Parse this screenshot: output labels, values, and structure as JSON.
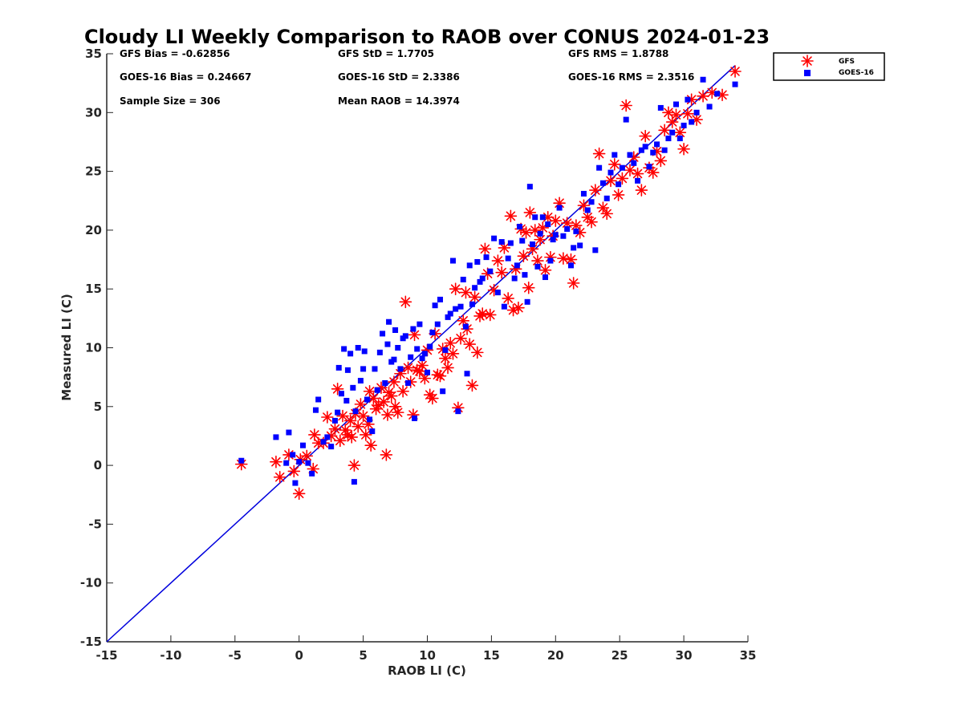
{
  "chart_data": {
    "type": "scatter",
    "title": "Cloudy LI Weekly Comparison to RAOB over CONUS 2024-01-23",
    "xlabel": "RAOB LI (C)",
    "ylabel": "Measured LI (C)",
    "xlim": [
      -15,
      35
    ],
    "ylim": [
      -15,
      35
    ],
    "xticks": [
      -15,
      -10,
      -5,
      0,
      5,
      10,
      15,
      20,
      25,
      30,
      35
    ],
    "yticks": [
      -15,
      -10,
      -5,
      0,
      5,
      10,
      15,
      20,
      25,
      30,
      35
    ],
    "grid": false,
    "legend_position": "outside-top-right",
    "reference_line": {
      "from": [
        -15,
        -15
      ],
      "to": [
        34,
        34
      ],
      "color": "#0000dd"
    },
    "stats": [
      [
        "GFS Bias = -0.62856",
        "GFS StD = 1.7705",
        "GFS RMS = 1.8788"
      ],
      [
        "GOES-16 Bias = 0.24667",
        "GOES-16 StD = 2.3386",
        "GOES-16 RMS = 2.3516"
      ],
      [
        "Sample Size = 306",
        "Mean RAOB = 14.3974",
        ""
      ]
    ],
    "series": [
      {
        "name": "GFS",
        "marker": "asterisk",
        "color": "#ff0000",
        "points": [
          [
            -4.5,
            0.1
          ],
          [
            -1.8,
            0.3
          ],
          [
            -1.5,
            -1.0
          ],
          [
            -0.8,
            0.9
          ],
          [
            -0.4,
            -0.5
          ],
          [
            0.0,
            -2.4
          ],
          [
            0.1,
            0.5
          ],
          [
            0.6,
            0.8
          ],
          [
            1.1,
            -0.3
          ],
          [
            1.2,
            2.6
          ],
          [
            1.5,
            1.9
          ],
          [
            1.9,
            1.9
          ],
          [
            2.2,
            4.1
          ],
          [
            2.5,
            2.5
          ],
          [
            2.8,
            3.1
          ],
          [
            3.0,
            6.5
          ],
          [
            3.2,
            2.1
          ],
          [
            3.4,
            4.2
          ],
          [
            3.6,
            3.0
          ],
          [
            3.8,
            2.6
          ],
          [
            4.0,
            3.8
          ],
          [
            4.1,
            2.4
          ],
          [
            4.3,
            0.0
          ],
          [
            4.4,
            4.4
          ],
          [
            4.6,
            3.3
          ],
          [
            4.8,
            5.2
          ],
          [
            5.0,
            4.2
          ],
          [
            5.2,
            2.6
          ],
          [
            5.4,
            3.5
          ],
          [
            5.5,
            6.3
          ],
          [
            5.6,
            1.7
          ],
          [
            5.8,
            5.7
          ],
          [
            6.0,
            4.8
          ],
          [
            6.2,
            5.1
          ],
          [
            6.4,
            6.6
          ],
          [
            6.6,
            5.4
          ],
          [
            6.8,
            0.9
          ],
          [
            6.9,
            4.3
          ],
          [
            7.0,
            6.2
          ],
          [
            7.2,
            5.9
          ],
          [
            7.4,
            7.1
          ],
          [
            7.5,
            5.0
          ],
          [
            7.7,
            4.5
          ],
          [
            7.9,
            7.8
          ],
          [
            8.1,
            6.3
          ],
          [
            8.3,
            13.9
          ],
          [
            8.5,
            8.3
          ],
          [
            8.7,
            7.1
          ],
          [
            8.9,
            4.3
          ],
          [
            9.0,
            11.1
          ],
          [
            9.2,
            8.1
          ],
          [
            9.4,
            8.0
          ],
          [
            9.6,
            8.5
          ],
          [
            9.8,
            7.4
          ],
          [
            10.0,
            9.8
          ],
          [
            10.2,
            6.0
          ],
          [
            10.4,
            5.7
          ],
          [
            10.6,
            11.2
          ],
          [
            10.8,
            7.7
          ],
          [
            11.0,
            7.6
          ],
          [
            11.2,
            9.9
          ],
          [
            11.4,
            9.1
          ],
          [
            11.6,
            8.3
          ],
          [
            11.8,
            10.4
          ],
          [
            12.0,
            9.5
          ],
          [
            12.2,
            15.0
          ],
          [
            12.4,
            4.9
          ],
          [
            12.6,
            10.8
          ],
          [
            12.8,
            12.3
          ],
          [
            13.0,
            14.7
          ],
          [
            13.1,
            11.6
          ],
          [
            13.3,
            10.3
          ],
          [
            13.5,
            6.8
          ],
          [
            13.7,
            14.3
          ],
          [
            13.9,
            9.6
          ],
          [
            14.1,
            12.7
          ],
          [
            14.3,
            12.9
          ],
          [
            14.5,
            18.4
          ],
          [
            14.7,
            16.3
          ],
          [
            14.9,
            12.8
          ],
          [
            15.2,
            14.9
          ],
          [
            15.5,
            17.4
          ],
          [
            15.8,
            16.4
          ],
          [
            16.0,
            18.5
          ],
          [
            16.3,
            14.2
          ],
          [
            16.5,
            21.2
          ],
          [
            16.7,
            13.2
          ],
          [
            16.9,
            16.7
          ],
          [
            17.1,
            13.4
          ],
          [
            17.3,
            20.1
          ],
          [
            17.5,
            17.8
          ],
          [
            17.7,
            19.8
          ],
          [
            17.9,
            15.1
          ],
          [
            18.0,
            21.5
          ],
          [
            18.2,
            18.4
          ],
          [
            18.4,
            20.0
          ],
          [
            18.6,
            17.4
          ],
          [
            18.8,
            19.2
          ],
          [
            19.0,
            20.2
          ],
          [
            19.2,
            16.6
          ],
          [
            19.4,
            21.1
          ],
          [
            19.6,
            17.7
          ],
          [
            19.8,
            19.5
          ],
          [
            20.0,
            20.8
          ],
          [
            20.3,
            22.3
          ],
          [
            20.6,
            17.6
          ],
          [
            20.9,
            20.6
          ],
          [
            21.2,
            17.5
          ],
          [
            21.4,
            15.5
          ],
          [
            21.6,
            20.4
          ],
          [
            21.9,
            19.8
          ],
          [
            22.2,
            22.1
          ],
          [
            22.5,
            21.1
          ],
          [
            22.8,
            20.7
          ],
          [
            23.1,
            23.4
          ],
          [
            23.4,
            26.5
          ],
          [
            23.7,
            21.9
          ],
          [
            24.0,
            21.4
          ],
          [
            24.3,
            24.2
          ],
          [
            24.6,
            25.6
          ],
          [
            24.9,
            23.0
          ],
          [
            25.2,
            24.4
          ],
          [
            25.5,
            30.6
          ],
          [
            25.8,
            25.1
          ],
          [
            26.1,
            26.2
          ],
          [
            26.4,
            24.8
          ],
          [
            26.7,
            23.4
          ],
          [
            27.0,
            28.0
          ],
          [
            27.3,
            25.3
          ],
          [
            27.6,
            24.9
          ],
          [
            27.9,
            26.7
          ],
          [
            28.2,
            25.9
          ],
          [
            28.5,
            28.5
          ],
          [
            28.8,
            30.0
          ],
          [
            29.1,
            29.2
          ],
          [
            29.4,
            29.8
          ],
          [
            29.7,
            28.3
          ],
          [
            30.0,
            26.9
          ],
          [
            30.3,
            29.9
          ],
          [
            30.6,
            31.1
          ],
          [
            31.0,
            29.4
          ],
          [
            31.5,
            31.4
          ],
          [
            32.2,
            31.7
          ],
          [
            33.0,
            31.5
          ],
          [
            34.0,
            33.5
          ]
        ]
      },
      {
        "name": "GOES-16",
        "marker": "square",
        "color": "#0000ff",
        "points": [
          [
            -4.5,
            0.4
          ],
          [
            -1.8,
            2.4
          ],
          [
            -1.0,
            0.2
          ],
          [
            -0.8,
            2.8
          ],
          [
            -0.5,
            0.9
          ],
          [
            -0.3,
            -1.5
          ],
          [
            0.0,
            0.3
          ],
          [
            0.3,
            1.7
          ],
          [
            0.7,
            0.2
          ],
          [
            1.0,
            -0.7
          ],
          [
            1.3,
            4.7
          ],
          [
            1.5,
            5.6
          ],
          [
            1.9,
            2.0
          ],
          [
            2.2,
            2.4
          ],
          [
            2.5,
            1.6
          ],
          [
            2.8,
            3.8
          ],
          [
            3.0,
            4.5
          ],
          [
            3.1,
            8.3
          ],
          [
            3.3,
            6.1
          ],
          [
            3.5,
            9.9
          ],
          [
            3.7,
            5.5
          ],
          [
            3.8,
            8.1
          ],
          [
            4.0,
            9.5
          ],
          [
            4.2,
            6.6
          ],
          [
            4.3,
            -1.4
          ],
          [
            4.4,
            4.6
          ],
          [
            4.6,
            10.0
          ],
          [
            4.8,
            7.2
          ],
          [
            5.0,
            8.2
          ],
          [
            5.1,
            9.7
          ],
          [
            5.3,
            5.6
          ],
          [
            5.5,
            3.9
          ],
          [
            5.7,
            2.9
          ],
          [
            5.9,
            8.2
          ],
          [
            6.1,
            6.4
          ],
          [
            6.3,
            9.6
          ],
          [
            6.5,
            11.2
          ],
          [
            6.7,
            7.0
          ],
          [
            6.9,
            10.3
          ],
          [
            7.0,
            12.2
          ],
          [
            7.2,
            8.8
          ],
          [
            7.4,
            9.0
          ],
          [
            7.5,
            11.5
          ],
          [
            7.7,
            10.0
          ],
          [
            7.9,
            8.2
          ],
          [
            8.1,
            10.8
          ],
          [
            8.3,
            11.0
          ],
          [
            8.5,
            7.0
          ],
          [
            8.7,
            9.2
          ],
          [
            8.9,
            11.6
          ],
          [
            9.0,
            4.0
          ],
          [
            9.2,
            9.9
          ],
          [
            9.4,
            12.0
          ],
          [
            9.6,
            9.1
          ],
          [
            9.8,
            9.5
          ],
          [
            10.0,
            7.9
          ],
          [
            10.2,
            10.1
          ],
          [
            10.4,
            11.3
          ],
          [
            10.6,
            13.6
          ],
          [
            10.8,
            12.0
          ],
          [
            11.0,
            14.1
          ],
          [
            11.2,
            6.3
          ],
          [
            11.4,
            9.8
          ],
          [
            11.6,
            12.6
          ],
          [
            11.8,
            12.9
          ],
          [
            12.0,
            17.4
          ],
          [
            12.2,
            13.3
          ],
          [
            12.4,
            4.6
          ],
          [
            12.6,
            13.5
          ],
          [
            12.8,
            15.8
          ],
          [
            13.0,
            11.8
          ],
          [
            13.1,
            7.8
          ],
          [
            13.3,
            17.0
          ],
          [
            13.5,
            13.7
          ],
          [
            13.7,
            15.1
          ],
          [
            13.9,
            17.3
          ],
          [
            14.1,
            15.6
          ],
          [
            14.3,
            15.9
          ],
          [
            14.6,
            17.7
          ],
          [
            14.9,
            16.5
          ],
          [
            15.2,
            19.3
          ],
          [
            15.5,
            14.7
          ],
          [
            15.8,
            19.0
          ],
          [
            16.0,
            13.5
          ],
          [
            16.3,
            17.6
          ],
          [
            16.5,
            18.9
          ],
          [
            16.8,
            15.9
          ],
          [
            17.0,
            17.0
          ],
          [
            17.2,
            20.3
          ],
          [
            17.4,
            19.1
          ],
          [
            17.6,
            16.2
          ],
          [
            17.8,
            13.9
          ],
          [
            18.0,
            23.7
          ],
          [
            18.2,
            18.8
          ],
          [
            18.4,
            21.1
          ],
          [
            18.6,
            16.9
          ],
          [
            18.8,
            19.7
          ],
          [
            19.0,
            21.1
          ],
          [
            19.2,
            16.0
          ],
          [
            19.4,
            20.5
          ],
          [
            19.6,
            17.4
          ],
          [
            19.8,
            19.2
          ],
          [
            20.0,
            19.6
          ],
          [
            20.3,
            21.9
          ],
          [
            20.6,
            19.5
          ],
          [
            20.9,
            20.1
          ],
          [
            21.2,
            17.0
          ],
          [
            21.4,
            18.5
          ],
          [
            21.6,
            19.9
          ],
          [
            21.9,
            18.7
          ],
          [
            22.2,
            23.1
          ],
          [
            22.5,
            21.7
          ],
          [
            22.8,
            22.4
          ],
          [
            23.1,
            18.3
          ],
          [
            23.4,
            25.3
          ],
          [
            23.7,
            24.0
          ],
          [
            24.0,
            22.7
          ],
          [
            24.3,
            24.9
          ],
          [
            24.6,
            26.4
          ],
          [
            24.9,
            23.9
          ],
          [
            25.2,
            25.3
          ],
          [
            25.5,
            29.4
          ],
          [
            25.8,
            26.4
          ],
          [
            26.1,
            25.7
          ],
          [
            26.4,
            24.2
          ],
          [
            26.7,
            26.8
          ],
          [
            27.0,
            27.1
          ],
          [
            27.3,
            25.4
          ],
          [
            27.6,
            26.6
          ],
          [
            27.9,
            27.3
          ],
          [
            28.2,
            30.4
          ],
          [
            28.5,
            26.8
          ],
          [
            28.8,
            27.8
          ],
          [
            29.1,
            28.3
          ],
          [
            29.4,
            30.7
          ],
          [
            29.7,
            27.8
          ],
          [
            30.0,
            28.9
          ],
          [
            30.3,
            31.1
          ],
          [
            30.6,
            29.2
          ],
          [
            31.0,
            30.0
          ],
          [
            31.5,
            32.8
          ],
          [
            32.0,
            30.5
          ],
          [
            32.6,
            31.6
          ],
          [
            34.0,
            32.4
          ]
        ]
      }
    ]
  }
}
